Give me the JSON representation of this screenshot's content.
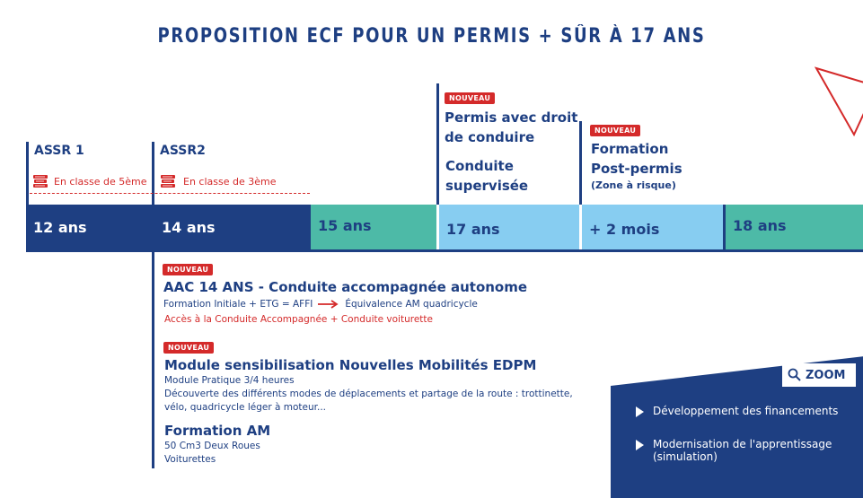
{
  "title": "PROPOSITION ECF POUR UN PERMIS + SÛR À 17 ANS",
  "colors": {
    "navy": "#1e3f82",
    "teal": "#4dbaa7",
    "light_blue": "#87cdf1",
    "red": "#d42a2a"
  },
  "badge_label": "NOUVEAU",
  "milestones": {
    "assr1": {
      "label": "ASSR 1",
      "note": "En classe de 5ème"
    },
    "assr2": {
      "label": "ASSR2",
      "note": "En classe de 3ème"
    },
    "permis": {
      "line1": "Permis avec droit",
      "line2": "de conduire",
      "line3": "Conduite",
      "line4": "supervisée"
    },
    "post": {
      "line1": "Formation",
      "line2": "Post-permis",
      "line3": "(Zone à risque)"
    }
  },
  "timeline": [
    "12 ans",
    "14 ans",
    "15 ans",
    "17 ans",
    "+ 2 mois",
    "18 ans"
  ],
  "aac": {
    "title": "AAC 14 ANS - Conduite accompagnée autonome",
    "line1a": "Formation Initiale + ETG = AFFI",
    "line1b": "Équivalence AM quadricycle",
    "line2": "Accès à la Conduite Accompagnée + Conduite voiturette"
  },
  "edpm": {
    "title": "Module sensibilisation Nouvelles Mobilités EDPM",
    "line1": "Module Pratique 3/4 heures",
    "line2": "Découverte des différents modes de déplacements et partage de la route : trottinette,",
    "line3": "vélo, quadricycle léger à moteur..."
  },
  "am": {
    "title": "Formation AM",
    "line1": "50 Cm3 Deux Roues",
    "line2": "Voiturettes"
  },
  "zoom": {
    "label": "ZOOM",
    "items": [
      "Développement des financements",
      "Modernisation de l'apprentissage",
      "(simulation)"
    ]
  }
}
